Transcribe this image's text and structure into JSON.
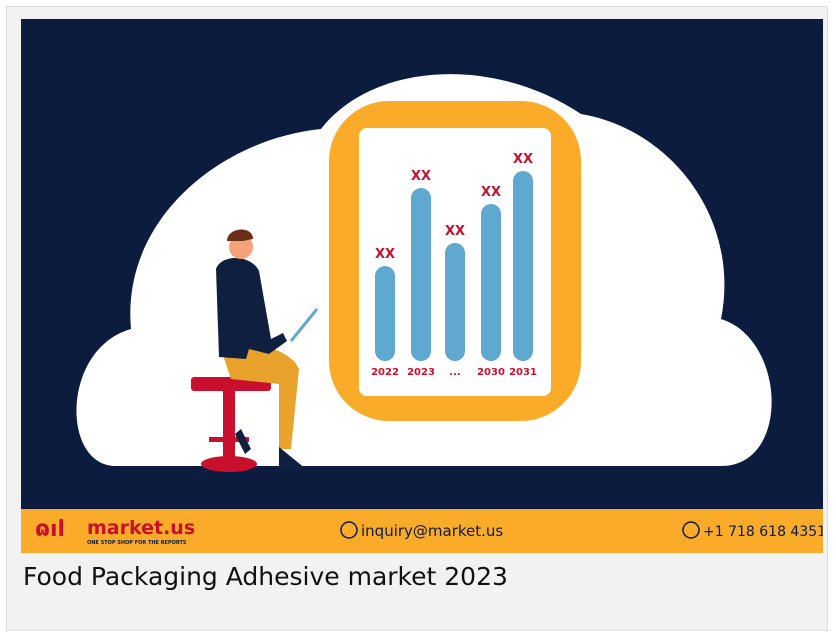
{
  "illustration": {
    "bar_labels": [
      "XX",
      "XX",
      "XX",
      "XX",
      "XX"
    ],
    "years": [
      "2022",
      "2023",
      "...",
      "2030",
      "2031"
    ]
  },
  "banner": {
    "brand": "market.us",
    "tagline": "ONE STOP SHOP FOR THE REPORTS",
    "email": "inquiry@market.us",
    "phone": "+1 718 618 4351"
  },
  "caption": "Food Packaging Adhesive market 2023"
}
